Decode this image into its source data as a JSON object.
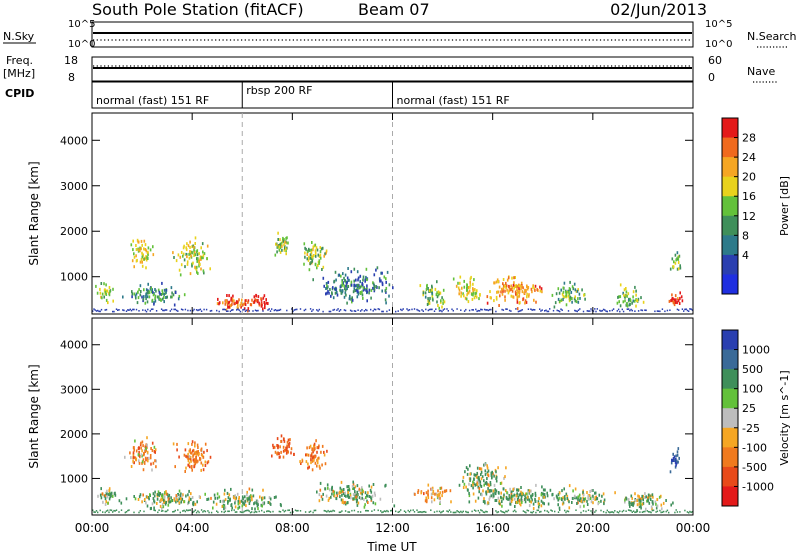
{
  "header": {
    "station": "South Pole Station (fitACF)",
    "beam": "Beam 07",
    "date": "02/Jun/2013"
  },
  "top_panels": {
    "nsky_label": "N.Sky",
    "nsky_ticks": [
      "10^5",
      "10^0"
    ],
    "nsearch_label": "N.Search",
    "freq_label": "Freq.",
    "freq_unit": "[MHz]",
    "freq_ticks": [
      "18",
      "8"
    ],
    "nave_label": "Nave",
    "nave_ticks": [
      "60",
      "0"
    ],
    "cpid_label": "CPID",
    "cpid_segments": [
      {
        "label": "normal (fast) 151 RF",
        "start": 0,
        "end": 6
      },
      {
        "label": "rbsp 200 RF",
        "start": 6,
        "end": 12
      },
      {
        "label": "normal (fast) 151 RF",
        "start": 12,
        "end": 24
      }
    ]
  },
  "colorbars": {
    "power": {
      "title": "Power [dB]",
      "ticks": [
        "28",
        "24",
        "20",
        "16",
        "12",
        "8",
        "4"
      ],
      "colors": [
        "#e41a1a",
        "#f06a1e",
        "#f5a623",
        "#e8d21c",
        "#63c13a",
        "#3f8f5a",
        "#2d7a8a",
        "#2a3fb0",
        "#1f2fe0"
      ]
    },
    "velocity": {
      "title": "Velocity [m s^-1]",
      "ticks": [
        "1000",
        "500",
        "100",
        "25",
        "-25",
        "-100",
        "-500",
        "-1000"
      ],
      "colors": [
        "#2a3fb0",
        "#3a6a98",
        "#3f8f5a",
        "#63c13a",
        "#bdbdbd",
        "#f5a623",
        "#f07a1e",
        "#e84a1a",
        "#e41a1a"
      ]
    }
  },
  "chart_data": [
    {
      "type": "heatmap",
      "panel": "power",
      "ylabel": "Slant Range [km]",
      "xlabel": "",
      "xlim": [
        0,
        24
      ],
      "ylim": [
        180,
        4600
      ],
      "yticks": [
        "4000",
        "3000",
        "2000",
        "1000"
      ],
      "ytick_values": [
        4000,
        3000,
        2000,
        1000
      ],
      "mode_change_lines_hours": [
        6,
        12
      ],
      "blobs": [
        {
          "t": 0.5,
          "r": 650,
          "dt": 0.5,
          "dr": 300,
          "v": 14
        },
        {
          "t": 2.0,
          "r": 1500,
          "dt": 0.6,
          "dr": 450,
          "v": 16
        },
        {
          "t": 4.0,
          "r": 1450,
          "dt": 0.9,
          "dr": 500,
          "v": 14
        },
        {
          "t": 2.5,
          "r": 600,
          "dt": 1.5,
          "dr": 300,
          "v": 8
        },
        {
          "t": 5.5,
          "r": 450,
          "dt": 1.0,
          "dr": 250,
          "v": 24
        },
        {
          "t": 6.5,
          "r": 450,
          "dt": 0.7,
          "dr": 250,
          "v": 28
        },
        {
          "t": 7.5,
          "r": 1650,
          "dt": 0.5,
          "dr": 400,
          "v": 14
        },
        {
          "t": 8.8,
          "r": 1450,
          "dt": 0.7,
          "dr": 450,
          "v": 14
        },
        {
          "t": 10.5,
          "r": 800,
          "dt": 2.0,
          "dr": 450,
          "v": 6
        },
        {
          "t": 13.6,
          "r": 600,
          "dt": 0.8,
          "dr": 350,
          "v": 12
        },
        {
          "t": 15.0,
          "r": 700,
          "dt": 0.7,
          "dr": 400,
          "v": 16
        },
        {
          "t": 16.8,
          "r": 700,
          "dt": 1.4,
          "dr": 450,
          "v": 22
        },
        {
          "t": 19.0,
          "r": 600,
          "dt": 0.9,
          "dr": 350,
          "v": 10
        },
        {
          "t": 21.5,
          "r": 550,
          "dt": 0.8,
          "dr": 300,
          "v": 12
        },
        {
          "t": 23.3,
          "r": 500,
          "dt": 0.5,
          "dr": 250,
          "v": 26
        },
        {
          "t": 23.3,
          "r": 1350,
          "dt": 0.3,
          "dr": 350,
          "v": 12
        }
      ]
    },
    {
      "type": "heatmap",
      "panel": "velocity",
      "ylabel": "Slant Range [km]",
      "xlabel": "Time UT",
      "xlim": [
        0,
        24
      ],
      "ylim": [
        180,
        4600
      ],
      "xticks": [
        "00:00",
        "04:00",
        "08:00",
        "12:00",
        "16:00",
        "20:00",
        "00:00"
      ],
      "xtick_values": [
        0,
        4,
        8,
        12,
        16,
        20,
        24
      ],
      "yticks": [
        "4000",
        "3000",
        "2000",
        "1000"
      ],
      "ytick_values": [
        4000,
        3000,
        2000,
        1000
      ],
      "mode_change_lines_hours": [
        6,
        12
      ],
      "blobs": [
        {
          "t": 0.6,
          "r": 600,
          "dt": 0.6,
          "dr": 300,
          "v": 60
        },
        {
          "t": 2.0,
          "r": 1550,
          "dt": 0.8,
          "dr": 500,
          "v": -150
        },
        {
          "t": 4.0,
          "r": 1500,
          "dt": 0.9,
          "dr": 500,
          "v": -200
        },
        {
          "t": 3.0,
          "r": 550,
          "dt": 2.0,
          "dr": 300,
          "v": 80
        },
        {
          "t": 6.0,
          "r": 500,
          "dt": 2.0,
          "dr": 300,
          "v": 90
        },
        {
          "t": 7.6,
          "r": 1700,
          "dt": 0.6,
          "dr": 400,
          "v": -300
        },
        {
          "t": 8.8,
          "r": 1500,
          "dt": 0.7,
          "dr": 450,
          "v": -200
        },
        {
          "t": 10.3,
          "r": 650,
          "dt": 2.0,
          "dr": 350,
          "v": 60
        },
        {
          "t": 13.6,
          "r": 650,
          "dt": 0.8,
          "dr": 300,
          "v": -150
        },
        {
          "t": 15.5,
          "r": 1000,
          "dt": 1.2,
          "dr": 450,
          "v": 80
        },
        {
          "t": 17.0,
          "r": 600,
          "dt": 2.5,
          "dr": 350,
          "v": 90
        },
        {
          "t": 19.5,
          "r": 550,
          "dt": 1.5,
          "dr": 300,
          "v": 80
        },
        {
          "t": 22.0,
          "r": 500,
          "dt": 1.5,
          "dr": 300,
          "v": 80
        },
        {
          "t": 23.3,
          "r": 1400,
          "dt": 0.3,
          "dr": 350,
          "v": 700
        }
      ]
    }
  ]
}
